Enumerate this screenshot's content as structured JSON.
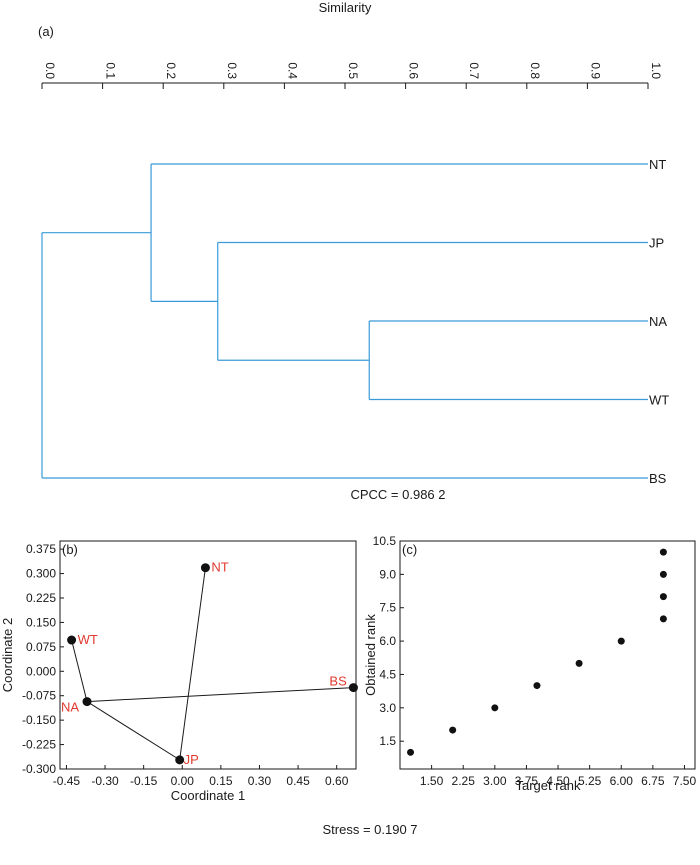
{
  "chart_data": [
    {
      "panel_label": "(a)",
      "type": "dendrogram",
      "title": "Similarity",
      "axis_ticks": [
        "0.0",
        "0.1",
        "0.2",
        "0.3",
        "0.4",
        "0.5",
        "0.6",
        "0.7",
        "0.8",
        "0.9",
        "1.0"
      ],
      "xlim": [
        0,
        1
      ],
      "leaves": [
        "NT",
        "JP",
        "NA",
        "WT",
        "BS"
      ],
      "merges": [
        {
          "members": [
            "NA",
            "WT"
          ],
          "similarity": 0.54
        },
        {
          "members": [
            "JP",
            "NA-WT"
          ],
          "similarity": 0.29
        },
        {
          "members": [
            "NT",
            "JP-NA-WT"
          ],
          "similarity": 0.18
        },
        {
          "members": [
            "BS",
            "NT-JP-NA-WT"
          ],
          "similarity": 0.0
        }
      ],
      "line_color": "#3a9bd8",
      "annotation": "CPCC = 0.986 2"
    },
    {
      "panel_label": "(b)",
      "type": "scatter",
      "xlabel": "Coordinate 1",
      "ylabel": "Coordinate 2",
      "xlim": [
        -0.475,
        0.675
      ],
      "ylim": [
        -0.3,
        0.4
      ],
      "x_ticks": [
        "-0.45",
        "-0.30",
        "-0.15",
        "0.00",
        "0.15",
        "0.30",
        "0.45",
        "0.60"
      ],
      "y_ticks": [
        "0.375",
        "0.300",
        "0.225",
        "0.150",
        "0.075",
        "0.000",
        "-0.075",
        "-0.150",
        "-0.225",
        "-0.300"
      ],
      "points": [
        {
          "label": "NT",
          "x": 0.09,
          "y": 0.318
        },
        {
          "label": "WT",
          "x": -0.43,
          "y": 0.096
        },
        {
          "label": "NA",
          "x": -0.37,
          "y": -0.093
        },
        {
          "label": "JP",
          "x": -0.01,
          "y": -0.272
        },
        {
          "label": "BS",
          "x": 0.665,
          "y": -0.05
        }
      ],
      "edges": [
        [
          "NT",
          "JP"
        ],
        [
          "JP",
          "NA"
        ],
        [
          "NA",
          "WT"
        ],
        [
          "NA",
          "BS"
        ]
      ],
      "label_color": "#e03a2f",
      "annotation": "Stress = 0.190 7"
    },
    {
      "panel_label": "(c)",
      "type": "scatter",
      "xlabel": "Target rank",
      "ylabel": "Obtained rank",
      "xlim": [
        0.75,
        7.75
      ],
      "ylim": [
        0.25,
        10.5
      ],
      "x_ticks": [
        "1.50",
        "2.25",
        "3.00",
        "3.75",
        "4.50",
        "5.25",
        "6.00",
        "6.75",
        "7.50"
      ],
      "y_ticks": [
        "10.5",
        "9.0",
        "7.5",
        "6.0",
        "4.5",
        "3.0",
        "1.5"
      ],
      "points": [
        {
          "x": 1.0,
          "y": 1.0
        },
        {
          "x": 2.0,
          "y": 2.0
        },
        {
          "x": 3.0,
          "y": 3.0
        },
        {
          "x": 4.0,
          "y": 4.0
        },
        {
          "x": 5.0,
          "y": 5.0
        },
        {
          "x": 6.0,
          "y": 6.0
        },
        {
          "x": 7.0,
          "y": 7.0
        },
        {
          "x": 7.0,
          "y": 8.0
        },
        {
          "x": 7.0,
          "y": 9.0
        },
        {
          "x": 7.0,
          "y": 10.0
        }
      ]
    }
  ]
}
